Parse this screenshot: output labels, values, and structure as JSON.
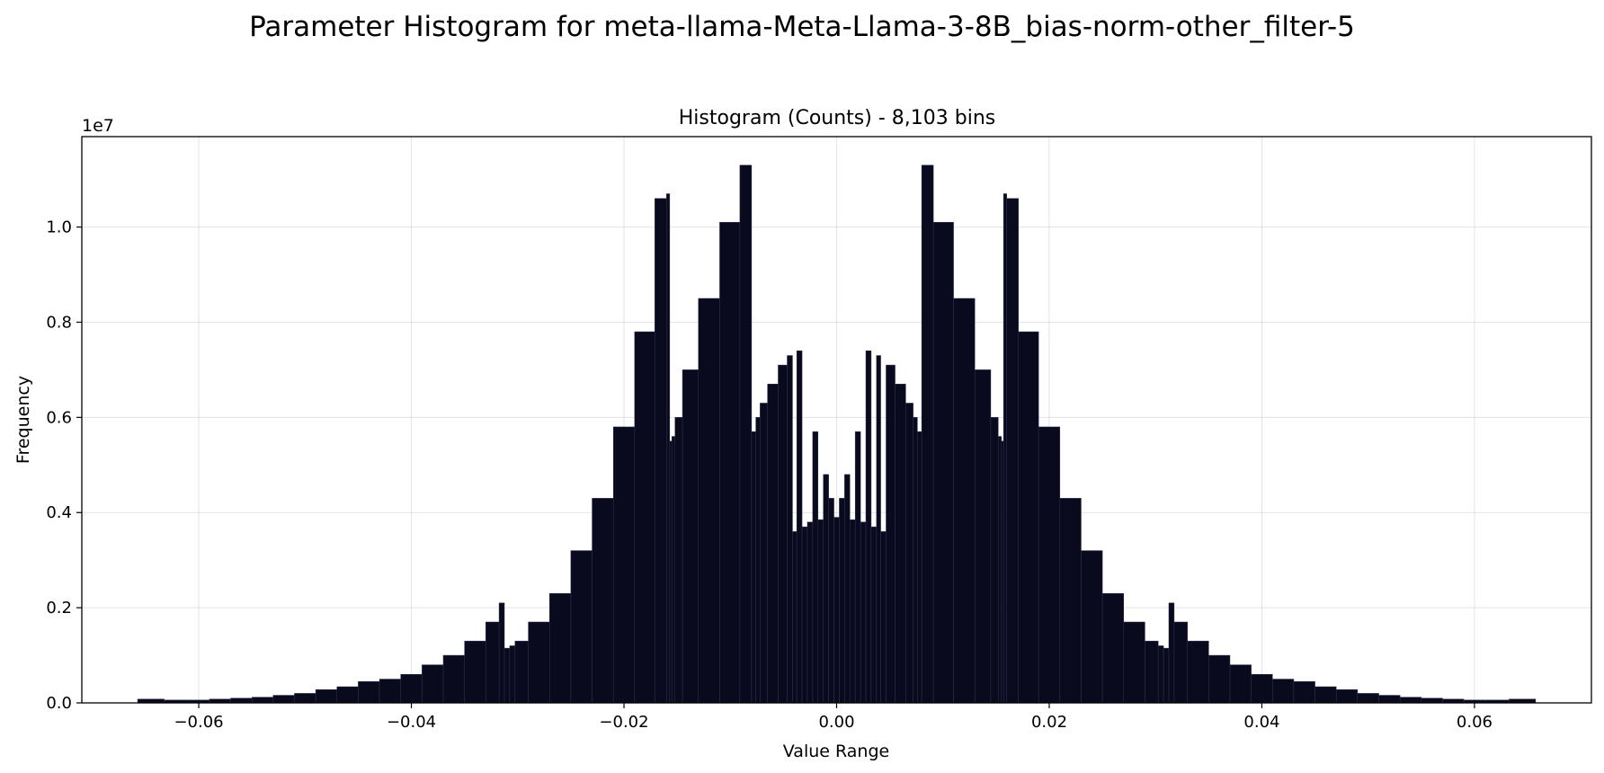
{
  "figure": {
    "suptitle": "Parameter Histogram for meta-llama-Meta-Llama-3-8B_bias-norm-other_filter-5"
  },
  "chart_data": {
    "type": "bar",
    "title": "Histogram (Counts) - 8,103 bins",
    "xlabel": "Value Range",
    "ylabel": "Frequency",
    "y_offset_label": "1e7",
    "xlim": [
      -0.071,
      0.071
    ],
    "ylim": [
      0,
      11900000
    ],
    "x_ticks": [
      -0.06,
      -0.04,
      -0.02,
      0.0,
      0.02,
      0.04,
      0.06
    ],
    "x_tick_labels": [
      "−0.06",
      "−0.04",
      "−0.02",
      "0.00",
      "0.02",
      "0.04",
      "0.06"
    ],
    "y_ticks": [
      0,
      2000000,
      4000000,
      6000000,
      8000000,
      10000000
    ],
    "y_tick_labels": [
      "0.0",
      "0.2",
      "0.4",
      "0.6",
      "0.8",
      "1.0"
    ],
    "grid": true,
    "bar_color": "#0a0a1e",
    "bar_edge_color": "#2e3350",
    "total_bins": 8103,
    "series": [
      {
        "values_note_x": "bin centers",
        "x": [
          -0.0645,
          -0.062,
          -0.06,
          -0.058,
          -0.056,
          -0.054,
          -0.052,
          -0.05,
          -0.048,
          -0.046,
          -0.044,
          -0.042,
          -0.04,
          -0.038,
          -0.036,
          -0.034,
          -0.032,
          -0.0315,
          -0.031,
          -0.0305,
          -0.03,
          -0.028,
          -0.026,
          -0.024,
          -0.022,
          -0.02,
          -0.018,
          -0.0162,
          -0.0158,
          -0.0156,
          -0.0154,
          -0.015,
          -0.014,
          -0.012,
          -0.01,
          -0.0082,
          -0.0078,
          -0.0074,
          -0.007,
          -0.006,
          -0.005,
          -0.0043,
          -0.004,
          -0.0035,
          -0.003,
          -0.0025,
          -0.002,
          -0.0015,
          -0.001,
          -0.0005,
          0.0,
          0.0005,
          0.001,
          0.0015,
          0.002,
          0.0025,
          0.003,
          0.0035,
          0.004,
          0.0043,
          0.005,
          0.006,
          0.007,
          0.0074,
          0.0078,
          0.0082,
          0.01,
          0.012,
          0.014,
          0.015,
          0.0154,
          0.0156,
          0.0158,
          0.0162,
          0.018,
          0.02,
          0.022,
          0.024,
          0.026,
          0.028,
          0.03,
          0.0305,
          0.031,
          0.0315,
          0.032,
          0.034,
          0.036,
          0.038,
          0.04,
          0.042,
          0.044,
          0.046,
          0.048,
          0.05,
          0.052,
          0.054,
          0.056,
          0.058,
          0.06,
          0.062,
          0.0645
        ],
        "y": [
          80000,
          60000,
          60000,
          80000,
          100000,
          120000,
          160000,
          200000,
          280000,
          340000,
          450000,
          500000,
          600000,
          800000,
          1000000,
          1300000,
          1700000,
          2100000,
          1150000,
          1200000,
          1300000,
          1700000,
          2300000,
          3200000,
          4300000,
          5800000,
          7800000,
          10600000,
          10700000,
          5500000,
          5600000,
          6000000,
          7000000,
          8500000,
          10100000,
          11300000,
          5700000,
          6000000,
          6300000,
          6700000,
          7100000,
          7300000,
          3600000,
          7400000,
          3700000,
          3800000,
          5700000,
          3850000,
          4800000,
          4300000,
          3900000,
          4300000,
          4800000,
          3850000,
          5700000,
          3800000,
          7400000,
          3700000,
          7300000,
          3600000,
          7100000,
          6700000,
          6300000,
          6000000,
          5700000,
          11300000,
          10100000,
          8500000,
          7000000,
          6000000,
          5600000,
          5500000,
          10700000,
          10600000,
          7800000,
          5800000,
          4300000,
          3200000,
          2300000,
          1700000,
          1300000,
          1200000,
          1150000,
          2100000,
          1700000,
          1300000,
          1000000,
          800000,
          600000,
          500000,
          450000,
          340000,
          280000,
          200000,
          160000,
          120000,
          100000,
          80000,
          60000,
          60000,
          80000
        ]
      }
    ]
  }
}
